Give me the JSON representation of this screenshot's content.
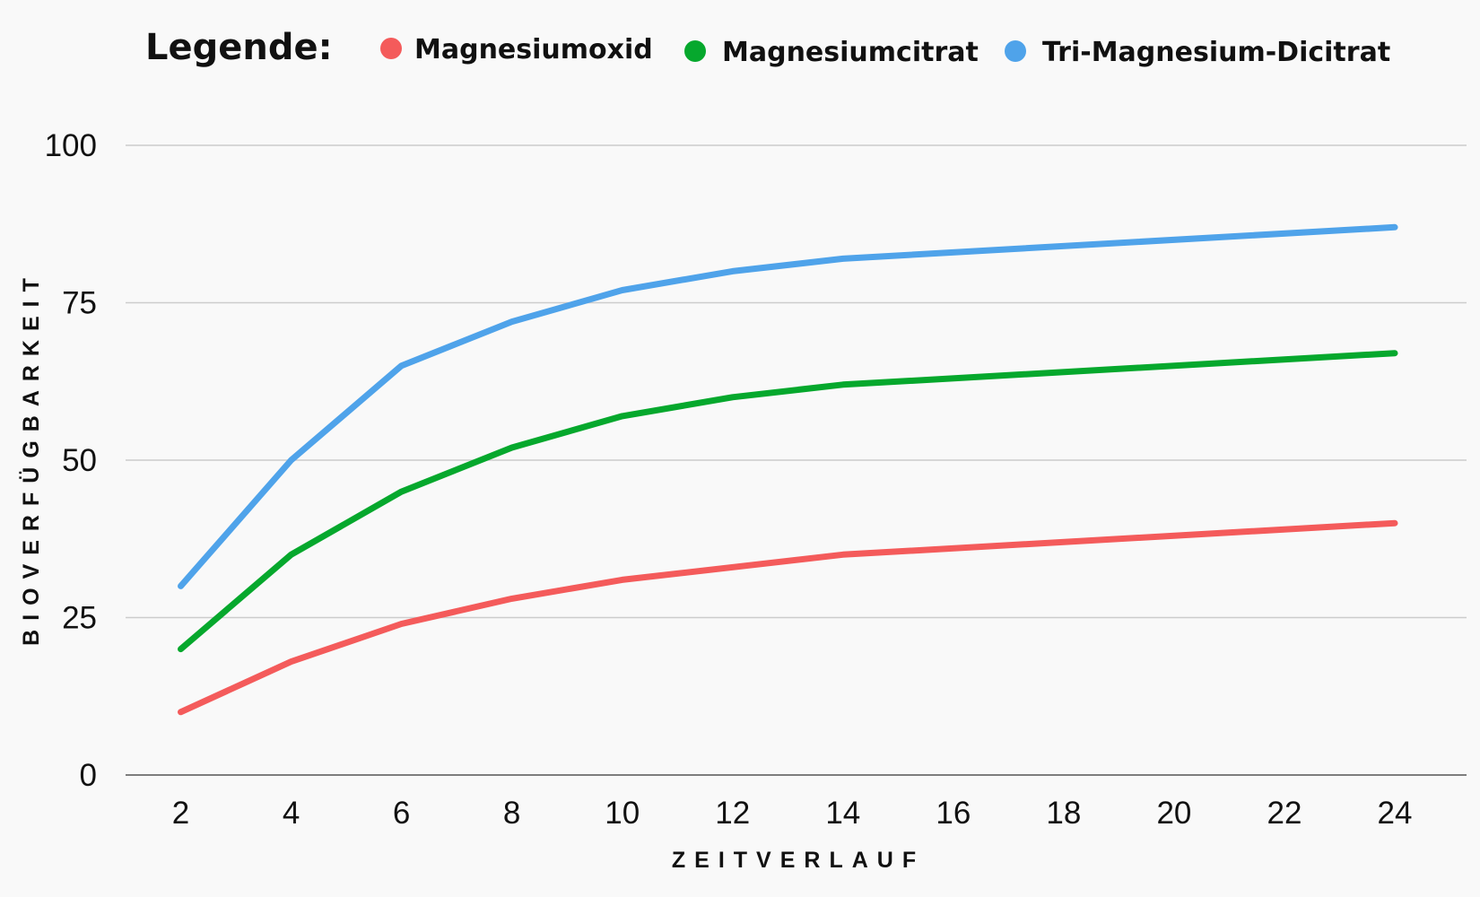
{
  "chart_data": {
    "type": "line",
    "legend_title": "Legende:",
    "legend_position": "top",
    "x": [
      2,
      4,
      6,
      8,
      10,
      12,
      14,
      16,
      18,
      20,
      22,
      24
    ],
    "x_ticks": [
      "2",
      "4",
      "6",
      "8",
      "10",
      "12",
      "14",
      "16",
      "18",
      "20",
      "22",
      "24"
    ],
    "y_ticks": [
      "0",
      "25",
      "50",
      "75",
      "100"
    ],
    "ylim": [
      0,
      100
    ],
    "grid": true,
    "xlabel": "ZEITVERLAUF",
    "ylabel": "BIOVERFÜGBARKEIT",
    "series": [
      {
        "name": "Magnesiumoxid",
        "color": "#f45b5b",
        "x": [
          2,
          4,
          6,
          8,
          10,
          14,
          24
        ],
        "values": [
          10,
          18,
          24,
          28,
          31,
          35,
          40
        ]
      },
      {
        "name": "Magnesiumcitrat",
        "color": "#06a82d",
        "x": [
          2,
          4,
          6,
          8,
          10,
          12,
          14,
          24
        ],
        "values": [
          20,
          35,
          45,
          52,
          57,
          60,
          62,
          67
        ]
      },
      {
        "name": "Tri-Magnesium-Dicitrat",
        "color": "#4fa3ea",
        "x": [
          2,
          4,
          6,
          8,
          10,
          12,
          14,
          24
        ],
        "values": [
          30,
          50,
          65,
          72,
          77,
          80,
          82,
          87
        ]
      }
    ]
  }
}
